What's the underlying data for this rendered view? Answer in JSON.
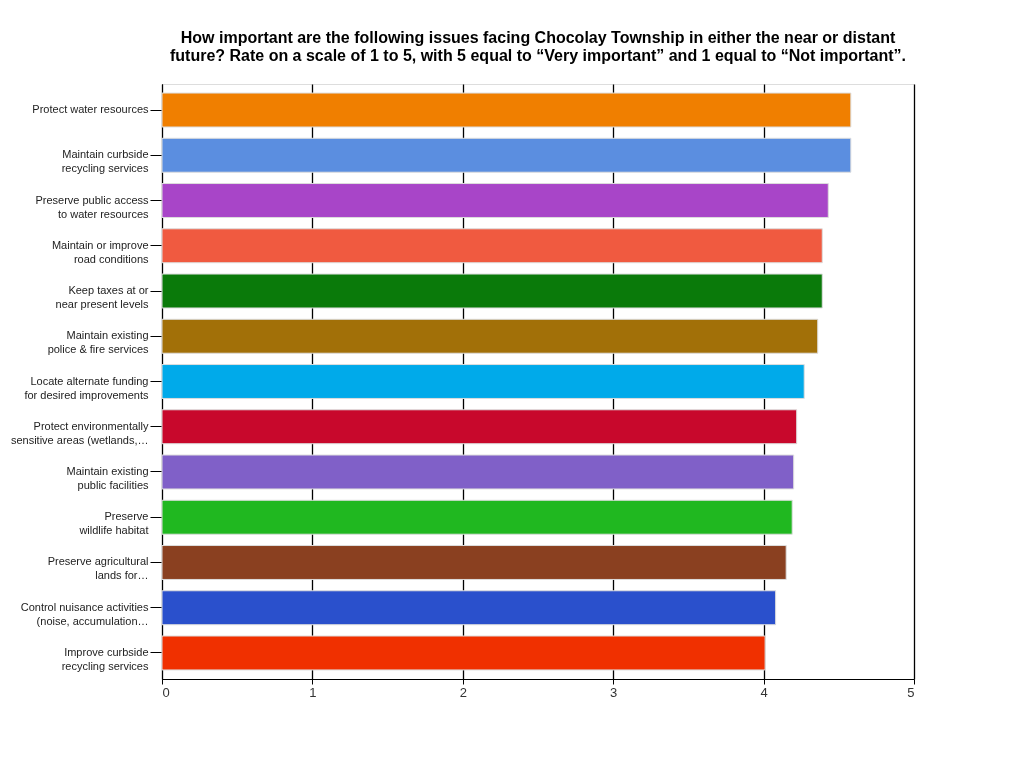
{
  "chart_data": {
    "type": "bar",
    "orientation": "horizontal",
    "title": "How important are the following issues facing Chocolay Township in either the near or distant future? Rate on a scale of 1 to 5, with 5 equal to “Very important” and 1 equal to “Not important”.",
    "categories": [
      "Protect water resources",
      "Maintain curbside recycling services",
      "Preserve public access to water resources",
      "Maintain or improve road conditions",
      "Keep taxes at or near present levels",
      "Maintain existing police & fire services",
      "Locate alternate funding for desired improvements",
      "Protect environmentally sensitive areas (wetlands,…",
      "Maintain existing public facilities",
      "Preserve wildlife habitat",
      "Preserve agricultural lands for…",
      "Control nuisance activities (noise, accumulation…",
      "Improve curbside recycling services"
    ],
    "values": [
      4.58,
      4.58,
      4.43,
      4.39,
      4.39,
      4.36,
      4.27,
      4.22,
      4.2,
      4.19,
      4.15,
      4.08,
      4.01
    ],
    "colors": [
      "#f07f00",
      "#5b8ee0",
      "#a845c8",
      "#f05a40",
      "#0a7a0a",
      "#a27008",
      "#00aaea",
      "#c8082c",
      "#8060c8",
      "#20b820",
      "#8a4020",
      "#2a50cc",
      "#f03000"
    ],
    "xlim": [
      0,
      5
    ],
    "xticks": [
      0,
      1,
      2,
      3,
      4,
      5
    ],
    "grid": "x",
    "legend": false
  }
}
